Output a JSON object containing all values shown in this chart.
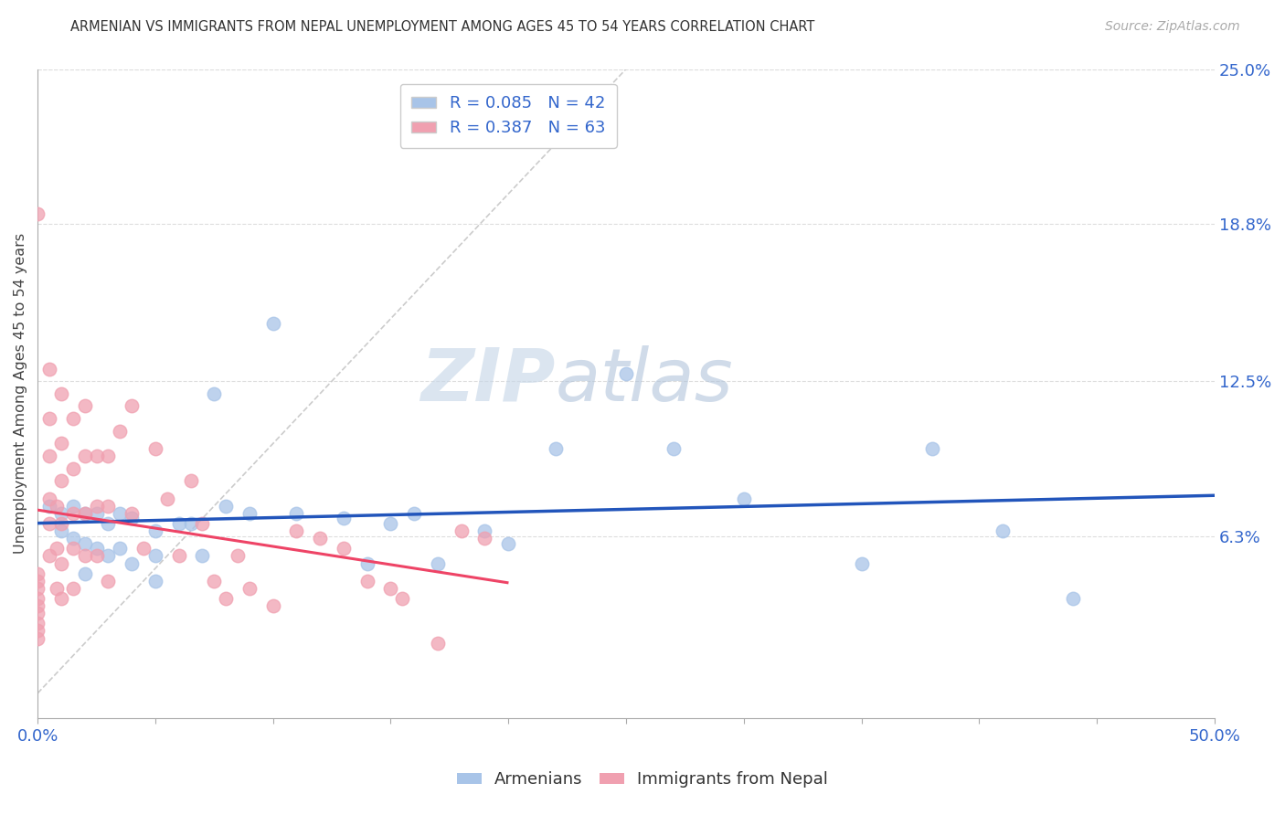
{
  "title": "ARMENIAN VS IMMIGRANTS FROM NEPAL UNEMPLOYMENT AMONG AGES 45 TO 54 YEARS CORRELATION CHART",
  "source": "Source: ZipAtlas.com",
  "ylabel": "Unemployment Among Ages 45 to 54 years",
  "xlim": [
    0.0,
    0.5
  ],
  "ylim": [
    -0.01,
    0.25
  ],
  "xticks": [
    0.0,
    0.05,
    0.1,
    0.15,
    0.2,
    0.25,
    0.3,
    0.35,
    0.4,
    0.45,
    0.5
  ],
  "xtick_labels": [
    "0.0%",
    "",
    "",
    "",
    "",
    "",
    "",
    "",
    "",
    "",
    "50.0%"
  ],
  "ytick_labels_right": [
    "25.0%",
    "18.8%",
    "12.5%",
    "6.3%"
  ],
  "yticks_right": [
    0.25,
    0.188,
    0.125,
    0.063
  ],
  "armenian_color": "#a8c4e8",
  "nepal_color": "#f0a0b0",
  "regression_armenian_color": "#2255bb",
  "regression_nepal_color": "#ee4466",
  "diagonal_color": "#cccccc",
  "R_armenian": 0.085,
  "N_armenian": 42,
  "R_nepal": 0.387,
  "N_nepal": 63,
  "legend_text_color": "#3366cc",
  "background_color": "#ffffff",
  "watermark_zip": "ZIP",
  "watermark_atlas": "atlas",
  "armenian_x": [
    0.005,
    0.01,
    0.01,
    0.015,
    0.015,
    0.02,
    0.02,
    0.02,
    0.025,
    0.025,
    0.03,
    0.03,
    0.035,
    0.035,
    0.04,
    0.04,
    0.05,
    0.05,
    0.05,
    0.06,
    0.065,
    0.07,
    0.075,
    0.08,
    0.09,
    0.1,
    0.11,
    0.13,
    0.14,
    0.15,
    0.16,
    0.17,
    0.19,
    0.2,
    0.22,
    0.25,
    0.27,
    0.3,
    0.35,
    0.38,
    0.41,
    0.44
  ],
  "armenian_y": [
    0.075,
    0.072,
    0.065,
    0.075,
    0.062,
    0.072,
    0.06,
    0.048,
    0.072,
    0.058,
    0.068,
    0.055,
    0.072,
    0.058,
    0.07,
    0.052,
    0.065,
    0.055,
    0.045,
    0.068,
    0.068,
    0.055,
    0.12,
    0.075,
    0.072,
    0.148,
    0.072,
    0.07,
    0.052,
    0.068,
    0.072,
    0.052,
    0.065,
    0.06,
    0.098,
    0.128,
    0.098,
    0.078,
    0.052,
    0.098,
    0.065,
    0.038
  ],
  "nepal_x": [
    0.0,
    0.0,
    0.0,
    0.0,
    0.0,
    0.0,
    0.0,
    0.0,
    0.0,
    0.0,
    0.005,
    0.005,
    0.005,
    0.005,
    0.005,
    0.005,
    0.008,
    0.008,
    0.008,
    0.01,
    0.01,
    0.01,
    0.01,
    0.01,
    0.01,
    0.015,
    0.015,
    0.015,
    0.015,
    0.015,
    0.02,
    0.02,
    0.02,
    0.02,
    0.025,
    0.025,
    0.025,
    0.03,
    0.03,
    0.03,
    0.035,
    0.04,
    0.04,
    0.045,
    0.05,
    0.055,
    0.06,
    0.065,
    0.07,
    0.075,
    0.08,
    0.085,
    0.09,
    0.1,
    0.11,
    0.12,
    0.13,
    0.14,
    0.15,
    0.155,
    0.17,
    0.18,
    0.19
  ],
  "nepal_y": [
    0.048,
    0.045,
    0.042,
    0.038,
    0.035,
    0.032,
    0.028,
    0.025,
    0.022,
    0.192,
    0.13,
    0.11,
    0.095,
    0.078,
    0.068,
    0.055,
    0.075,
    0.058,
    0.042,
    0.12,
    0.1,
    0.085,
    0.068,
    0.052,
    0.038,
    0.11,
    0.09,
    0.072,
    0.058,
    0.042,
    0.115,
    0.095,
    0.072,
    0.055,
    0.095,
    0.075,
    0.055,
    0.095,
    0.075,
    0.045,
    0.105,
    0.115,
    0.072,
    0.058,
    0.098,
    0.078,
    0.055,
    0.085,
    0.068,
    0.045,
    0.038,
    0.055,
    0.042,
    0.035,
    0.065,
    0.062,
    0.058,
    0.045,
    0.042,
    0.038,
    0.02,
    0.065,
    0.062
  ]
}
